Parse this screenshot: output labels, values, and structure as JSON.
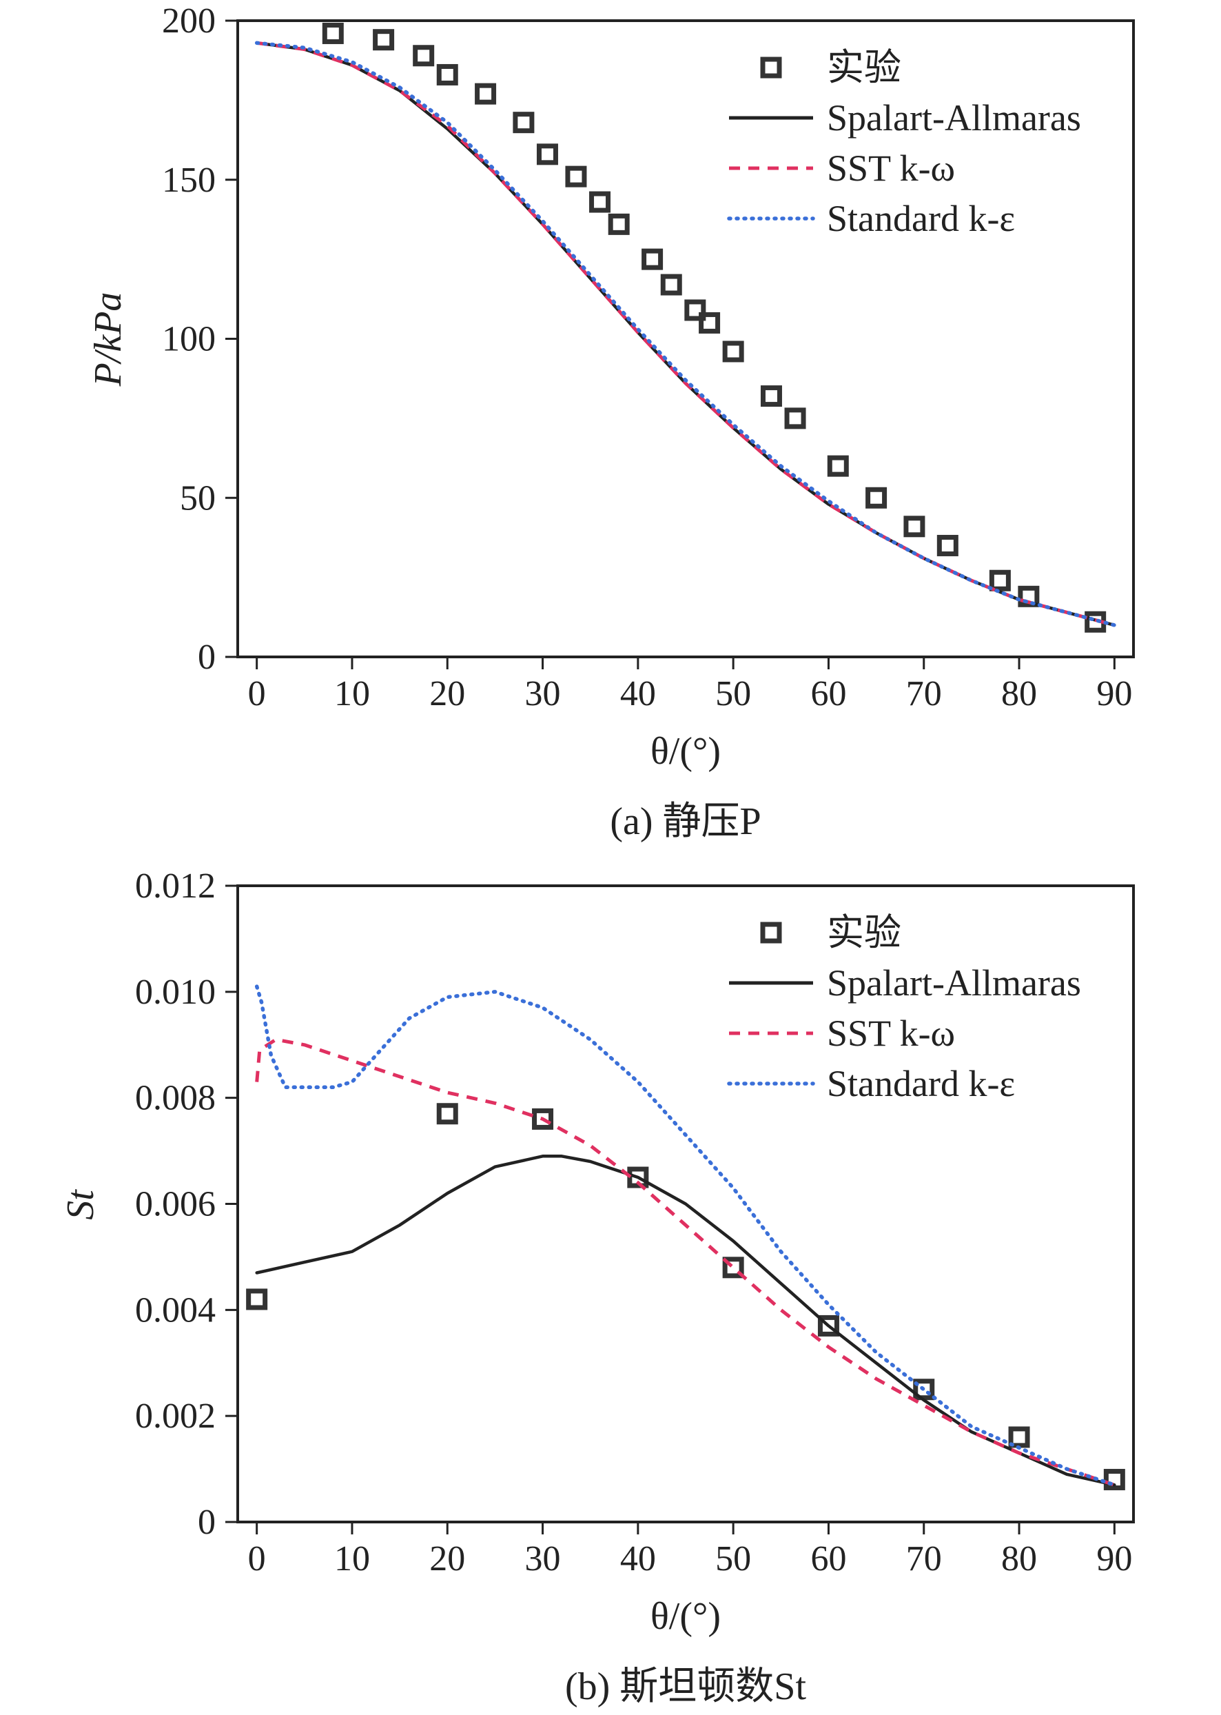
{
  "chart_data": [
    {
      "type": "line",
      "caption": "(a) 静压P",
      "xlabel": "θ/(°)",
      "ylabel": "P/kPa",
      "xlim": [
        -2,
        92
      ],
      "ylim": [
        0,
        200
      ],
      "xticks": [
        0,
        10,
        20,
        30,
        40,
        50,
        60,
        70,
        80,
        90
      ],
      "yticks": [
        0,
        50,
        100,
        150,
        200
      ],
      "xtick_labels": [
        "0",
        "10",
        "20",
        "30",
        "40",
        "50",
        "60",
        "70",
        "80",
        "90"
      ],
      "ytick_labels": [
        "0",
        "50",
        "100",
        "150",
        "200"
      ],
      "legend_position": "top-right",
      "series": [
        {
          "name": "实验",
          "style": "markers",
          "color": "#333333",
          "x": [
            8,
            13.3,
            17.5,
            20,
            24,
            28,
            30.5,
            33.5,
            36,
            38,
            41.5,
            43.5,
            46,
            47.5,
            50,
            54,
            56.5,
            61,
            65,
            69,
            72.5,
            78,
            81,
            88
          ],
          "y": [
            196,
            194,
            189,
            183,
            177,
            168,
            158,
            151,
            143,
            136,
            125,
            117,
            109,
            105,
            96,
            82,
            75,
            60,
            50,
            41,
            35,
            24,
            19,
            11
          ]
        },
        {
          "name": "Spalart-Allmaras",
          "style": "solid",
          "color": "#222222",
          "x": [
            0,
            5,
            10,
            15,
            20,
            25,
            30,
            35,
            40,
            45,
            50,
            55,
            60,
            65,
            70,
            75,
            80,
            85,
            90
          ],
          "y": [
            193,
            191,
            186,
            178,
            166,
            152,
            136,
            119,
            102,
            86,
            72,
            59,
            48,
            39,
            31,
            24,
            18,
            14,
            10
          ]
        },
        {
          "name": "SST k-ω",
          "style": "dashed",
          "color": "#e03060",
          "x": [
            0,
            5,
            10,
            15,
            20,
            25,
            30,
            35,
            40,
            45,
            50,
            55,
            60,
            65,
            70,
            75,
            80,
            85,
            90
          ],
          "y": [
            193,
            191,
            186,
            178,
            167,
            152,
            136,
            119,
            102,
            86,
            72,
            59,
            48,
            39,
            31,
            24,
            18,
            14,
            10
          ]
        },
        {
          "name": "Standard k-ε",
          "style": "dotted",
          "color": "#3a6fd8",
          "x": [
            0,
            5,
            10,
            15,
            20,
            25,
            30,
            35,
            40,
            45,
            50,
            55,
            60,
            65,
            70,
            75,
            80,
            85,
            90
          ],
          "y": [
            193,
            191.5,
            187,
            179,
            168,
            153,
            137,
            120,
            103,
            87,
            73,
            60,
            49,
            39,
            31,
            24,
            18,
            14,
            10
          ]
        }
      ]
    },
    {
      "type": "line",
      "caption": "(b) 斯坦顿数St",
      "xlabel": "θ/(°)",
      "ylabel": "St",
      "xlim": [
        -2,
        92
      ],
      "ylim": [
        0,
        0.012
      ],
      "xticks": [
        0,
        10,
        20,
        30,
        40,
        50,
        60,
        70,
        80,
        90
      ],
      "yticks": [
        0,
        0.002,
        0.004,
        0.006,
        0.008,
        0.01,
        0.012
      ],
      "xtick_labels": [
        "0",
        "10",
        "20",
        "30",
        "40",
        "50",
        "60",
        "70",
        "80",
        "90"
      ],
      "ytick_labels": [
        "0",
        "0.002",
        "0.004",
        "0.006",
        "0.008",
        "0.010",
        "0.012"
      ],
      "legend_position": "top-right",
      "series": [
        {
          "name": "实验",
          "style": "markers",
          "color": "#333333",
          "x": [
            0,
            20,
            30,
            40,
            50,
            60,
            70,
            80,
            90
          ],
          "y": [
            0.0042,
            0.0077,
            0.0076,
            0.0065,
            0.0048,
            0.0037,
            0.0025,
            0.0016,
            0.0008
          ]
        },
        {
          "name": "Spalart-Allmaras",
          "style": "solid",
          "color": "#222222",
          "x": [
            0,
            5,
            10,
            15,
            20,
            25,
            30,
            32,
            35,
            40,
            45,
            50,
            55,
            60,
            65,
            70,
            75,
            80,
            85,
            90
          ],
          "y": [
            0.0047,
            0.0049,
            0.0051,
            0.0056,
            0.0062,
            0.0067,
            0.0069,
            0.0069,
            0.0068,
            0.0065,
            0.006,
            0.0053,
            0.0045,
            0.0037,
            0.003,
            0.0023,
            0.0017,
            0.0013,
            0.0009,
            0.0007
          ]
        },
        {
          "name": "SST k-ω",
          "style": "dashed",
          "color": "#e03060",
          "x": [
            0,
            0.3,
            2,
            5,
            10,
            15,
            20,
            25,
            30,
            35,
            40,
            45,
            50,
            55,
            60,
            65,
            70,
            75,
            80,
            85,
            90
          ],
          "y": [
            0.0083,
            0.0089,
            0.0091,
            0.009,
            0.0087,
            0.0084,
            0.0081,
            0.0079,
            0.0076,
            0.0071,
            0.0064,
            0.0056,
            0.0048,
            0.004,
            0.0033,
            0.0027,
            0.0022,
            0.0017,
            0.0013,
            0.001,
            0.0007
          ]
        },
        {
          "name": "Standard k-ε",
          "style": "dotted",
          "color": "#3a6fd8",
          "x": [
            0,
            0.5,
            1.5,
            3,
            5,
            8,
            10,
            13,
            16,
            20,
            25,
            30,
            35,
            40,
            45,
            50,
            55,
            60,
            65,
            70,
            75,
            80,
            85,
            90
          ],
          "y": [
            0.0101,
            0.0098,
            0.0088,
            0.0082,
            0.0082,
            0.0082,
            0.0083,
            0.0089,
            0.0095,
            0.0099,
            0.01,
            0.0097,
            0.0091,
            0.0083,
            0.0073,
            0.0063,
            0.0051,
            0.0041,
            0.0032,
            0.0025,
            0.0018,
            0.0014,
            0.001,
            0.0007
          ]
        }
      ]
    }
  ]
}
